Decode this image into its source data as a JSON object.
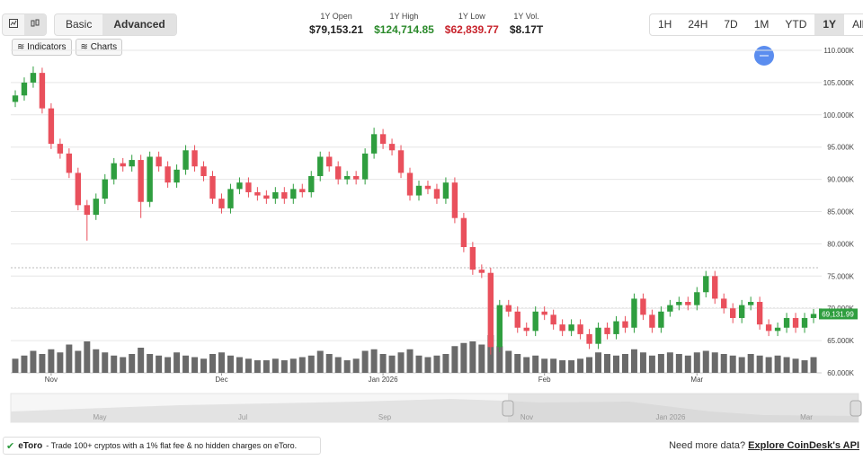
{
  "toolbar": {
    "modes": [
      "Basic",
      "Advanced"
    ],
    "tools": [
      "Indicators",
      "Charts"
    ],
    "ranges": [
      "1H",
      "24H",
      "7D",
      "1M",
      "YTD",
      "1Y",
      "All"
    ]
  },
  "stats": [
    {
      "label": "1Y Open",
      "value": "$79,153.21"
    },
    {
      "label": "1Y High",
      "value": "$124,714.85"
    },
    {
      "label": "1Y Low",
      "value": "$62,839.77"
    },
    {
      "label": "1Y Vol.",
      "value": "$8.17T"
    }
  ],
  "chart_data": {
    "type": "candlestick",
    "open": [
      102,
      103,
      105,
      106.5,
      101,
      95.5,
      94,
      91,
      86,
      84.5,
      87,
      90,
      92.5,
      92,
      93,
      86.5,
      93.5,
      92,
      89.5,
      91.5,
      94.5,
      92,
      90.5,
      87,
      85.5,
      88.5,
      89.5,
      88,
      87.5,
      87,
      88,
      87,
      88.5,
      88,
      90.5,
      93.5,
      92,
      90,
      90.5,
      90,
      94,
      97,
      95.5,
      94.5,
      91,
      87.5,
      89,
      88.5,
      87,
      89.5,
      84,
      79.5,
      76,
      75.5,
      64,
      70.5,
      69.5,
      67,
      66.5,
      69.5,
      69,
      67.5,
      66.5,
      67.5,
      66,
      64.5,
      67,
      66,
      68,
      67,
      71.5,
      69,
      67,
      69.5,
      70.5,
      71,
      70.5,
      72.5,
      75,
      71.5,
      70,
      68.5,
      70.5,
      71,
      67.5,
      66.5,
      67,
      68.5,
      67,
      68.5
    ],
    "high": [
      103.8,
      105.8,
      107.5,
      107.3,
      101.8,
      96.3,
      94.8,
      91.8,
      86.8,
      87.8,
      90.8,
      93.3,
      93.3,
      93.8,
      93.8,
      94.3,
      94.3,
      92.8,
      92.3,
      95.3,
      95.3,
      92.8,
      91.3,
      87.8,
      89.3,
      90.3,
      90.3,
      88.8,
      88.3,
      88.8,
      88.8,
      89.3,
      89.3,
      91.3,
      94.3,
      94.3,
      92.8,
      91.3,
      91.3,
      94.8,
      98,
      97.8,
      96.3,
      95.3,
      91.8,
      89.8,
      89.8,
      89.3,
      90.3,
      90.3,
      84.8,
      80.3,
      76.8,
      76.3,
      71.3,
      71.3,
      70.3,
      67.8,
      70.3,
      70.3,
      69.8,
      68.3,
      68.3,
      68.3,
      66.8,
      67.8,
      67.8,
      68.8,
      68.8,
      72.3,
      72.3,
      69.8,
      70.3,
      71.3,
      71.8,
      71.8,
      73.3,
      75.8,
      75.8,
      72.3,
      70.8,
      71.3,
      71.8,
      71.8,
      68.3,
      67.8,
      69.3,
      69.3,
      69.3,
      69.9
    ],
    "low": [
      101.2,
      102.2,
      104.2,
      100.2,
      94.7,
      93.2,
      90.2,
      85.2,
      80.5,
      83.7,
      86.2,
      89.2,
      91.2,
      91.2,
      84,
      85.7,
      91.2,
      88.7,
      88.7,
      90.7,
      91.2,
      89.7,
      86.2,
      84.7,
      84.7,
      87.7,
      87.2,
      86.7,
      86.2,
      86.2,
      86.2,
      86.2,
      87.2,
      87.2,
      89.7,
      91.2,
      89.2,
      89.2,
      89.2,
      89.2,
      93.2,
      94.7,
      93.7,
      90.2,
      86.7,
      86.7,
      87.7,
      86.2,
      86.2,
      83.2,
      78.7,
      75.2,
      74.7,
      62.84,
      63.2,
      68.7,
      66.2,
      65.7,
      65.7,
      68.2,
      66.7,
      65.7,
      65.7,
      65.2,
      63.7,
      63.7,
      65.2,
      65.2,
      66.2,
      66.2,
      68.2,
      66.2,
      66.2,
      68.7,
      69.7,
      69.7,
      69.7,
      71.7,
      70.7,
      69.2,
      67.7,
      67.7,
      69.7,
      66.7,
      65.7,
      65.7,
      66.2,
      66.2,
      66.2,
      67.7
    ],
    "close": [
      103,
      105,
      106.5,
      101,
      95.5,
      94,
      91,
      86,
      84.5,
      87,
      90,
      92.5,
      92,
      93,
      86.5,
      93.5,
      92,
      89.5,
      91.5,
      94.5,
      92,
      90.5,
      87,
      85.5,
      88.5,
      89.5,
      88,
      87.5,
      87,
      88,
      87,
      88.5,
      88,
      90.5,
      93.5,
      92,
      90,
      90.5,
      90,
      94,
      97,
      95.5,
      94.5,
      91,
      87.5,
      89,
      88.5,
      87,
      89.5,
      84,
      79.5,
      76,
      75.5,
      64,
      70.5,
      69.5,
      67,
      66.5,
      69.5,
      69,
      67.5,
      66.5,
      67.5,
      66,
      64.5,
      67,
      66,
      68,
      67,
      71.5,
      69,
      67,
      69.5,
      70.5,
      71,
      70.5,
      72.5,
      75,
      71.5,
      70,
      68.5,
      70.5,
      71,
      67.5,
      66.5,
      67,
      68.5,
      67,
      68.5,
      69.13
    ],
    "volume": [
      18,
      22,
      28,
      24,
      30,
      26,
      36,
      28,
      40,
      30,
      26,
      22,
      20,
      24,
      32,
      24,
      22,
      20,
      26,
      22,
      20,
      18,
      24,
      26,
      22,
      20,
      18,
      16,
      16,
      18,
      16,
      18,
      20,
      22,
      28,
      24,
      20,
      16,
      18,
      28,
      30,
      24,
      22,
      26,
      30,
      22,
      20,
      22,
      24,
      34,
      38,
      40,
      36,
      48,
      34,
      28,
      24,
      20,
      22,
      18,
      18,
      16,
      16,
      18,
      20,
      26,
      24,
      22,
      24,
      30,
      26,
      22,
      24,
      26,
      24,
      22,
      26,
      28,
      26,
      24,
      22,
      20,
      24,
      22,
      20,
      22,
      20,
      18,
      16,
      20
    ],
    "up_color": "#2f9e3f",
    "down_color": "#e9505c",
    "volume_color": "#6a6a6a",
    "xlim": [
      -0.5,
      89.5
    ],
    "xticks": [
      {
        "value": 4,
        "label": "Nov"
      },
      {
        "value": 23,
        "label": "Dec"
      },
      {
        "value": 41,
        "label": "Jan 2026"
      },
      {
        "value": 59,
        "label": "Feb"
      },
      {
        "value": 76,
        "label": "Mar"
      }
    ],
    "ylim": [
      60,
      110
    ],
    "yticks": [
      {
        "value": 60,
        "label": "60.000K"
      },
      {
        "value": 65,
        "label": "65.000K"
      },
      {
        "value": 70,
        "label": "70.000K"
      },
      {
        "value": 75,
        "label": "75.000K"
      },
      {
        "value": 80,
        "label": "80.000K"
      },
      {
        "value": 85,
        "label": "85.000K"
      },
      {
        "value": 90,
        "label": "90.000K"
      },
      {
        "value": 95,
        "label": "95.000K"
      },
      {
        "value": 100,
        "label": "100.000K"
      },
      {
        "value": 105,
        "label": "105.000K"
      },
      {
        "value": 110,
        "label": "110.000K"
      }
    ],
    "grid": true,
    "last_price_label": "69,131.99"
  },
  "navigator": {
    "labels": [
      "May",
      "Jul",
      "Sep",
      "Nov",
      "Jan 2026",
      "Mar"
    ]
  },
  "footer": {
    "brand": "eToro",
    "promo": "- Trade 100+ cryptos with a 1% flat fee & no hidden charges on eToro.",
    "prompt": "Need more data?",
    "link": "Explore CoinDesk's API"
  }
}
